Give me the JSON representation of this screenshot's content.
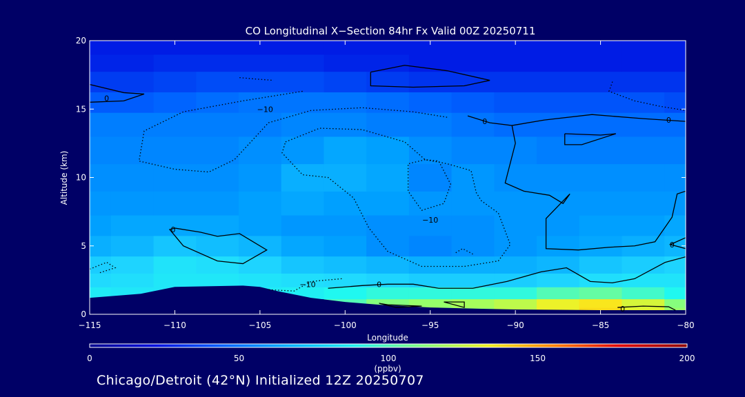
{
  "chart_data": {
    "type": "heatmap",
    "title": "CO Longitudinal X−Section 84hr  Fx Valid 00Z 20250711",
    "xlabel": "Longitude",
    "ylabel": "Altitude (km)",
    "xlim": [
      -115,
      -80
    ],
    "ylim": [
      0,
      20
    ],
    "x_ticks": [
      -115,
      -110,
      -105,
      -100,
      -95,
      -90,
      -85,
      -80
    ],
    "x_tick_labels": [
      "−115",
      "−110",
      "−105",
      "−100",
      "−95",
      "−90",
      "−85",
      "−80"
    ],
    "y_ticks": [
      0,
      5,
      10,
      15,
      20
    ],
    "y_tick_labels": [
      "0",
      "5",
      "10",
      "15",
      "20"
    ],
    "colorbar": {
      "min": 0,
      "max": 200,
      "ticks": [
        0,
        50,
        100,
        150,
        200
      ],
      "tick_labels": [
        "0",
        "50",
        "100",
        "150",
        "200"
      ],
      "units": "(ppbv)",
      "colors": [
        "#000090",
        "#0010e0",
        "#0060ff",
        "#00b0ff",
        "#20f0f0",
        "#80ff80",
        "#f0f020",
        "#ff8000",
        "#e00000",
        "#900000"
      ]
    },
    "color_scale": [
      {
        "v": 0,
        "c": "#000090"
      },
      {
        "v": 25,
        "c": "#0010e0"
      },
      {
        "v": 45,
        "c": "#0060ff"
      },
      {
        "v": 60,
        "c": "#00a0ff"
      },
      {
        "v": 75,
        "c": "#20d8ff"
      },
      {
        "v": 90,
        "c": "#20f8f0"
      },
      {
        "v": 105,
        "c": "#a0ff60"
      },
      {
        "v": 120,
        "c": "#f8f020"
      },
      {
        "v": 140,
        "c": "#ff9000"
      },
      {
        "v": 165,
        "c": "#ff2000"
      },
      {
        "v": 200,
        "c": "#900000"
      }
    ],
    "field": {
      "longitudes": [
        -115,
        -112.5,
        -110,
        -107.5,
        -105,
        -102.5,
        -100,
        -97.5,
        -95,
        -92.5,
        -90,
        -87.5,
        -85,
        -82.5,
        -80
      ],
      "altitudes": [
        0.25,
        0.75,
        1.5,
        2.5,
        3.5,
        5,
        6.5,
        8,
        10,
        12,
        14,
        15.5,
        17,
        18.5,
        19.5
      ],
      "values_ppbv": [
        [
          0,
          0,
          0,
          0,
          0,
          0,
          0,
          102,
          100,
          104,
          110,
          118,
          124,
          116,
          104
        ],
        [
          0,
          0,
          0,
          0,
          0,
          0,
          96,
          102,
          104,
          106,
          110,
          118,
          122,
          114,
          102
        ],
        [
          84,
          82,
          82,
          84,
          84,
          86,
          90,
          92,
          92,
          92,
          92,
          96,
          98,
          94,
          90
        ],
        [
          76,
          78,
          82,
          82,
          80,
          78,
          76,
          74,
          72,
          72,
          72,
          74,
          78,
          80,
          80
        ],
        [
          72,
          74,
          80,
          78,
          74,
          70,
          68,
          66,
          64,
          64,
          64,
          66,
          70,
          72,
          74
        ],
        [
          64,
          66,
          70,
          68,
          66,
          62,
          60,
          56,
          54,
          56,
          58,
          60,
          62,
          64,
          66
        ],
        [
          60,
          62,
          62,
          62,
          60,
          58,
          58,
          56,
          56,
          56,
          58,
          58,
          60,
          60,
          62
        ],
        [
          58,
          58,
          58,
          58,
          60,
          62,
          60,
          60,
          58,
          58,
          58,
          58,
          58,
          58,
          58
        ],
        [
          56,
          56,
          56,
          56,
          58,
          64,
          64,
          62,
          54,
          58,
          56,
          56,
          56,
          56,
          56
        ],
        [
          54,
          54,
          54,
          54,
          56,
          58,
          62,
          60,
          56,
          54,
          54,
          52,
          52,
          52,
          52
        ],
        [
          52,
          52,
          52,
          52,
          52,
          54,
          54,
          52,
          52,
          50,
          48,
          48,
          48,
          48,
          48
        ],
        [
          44,
          44,
          46,
          48,
          50,
          50,
          50,
          48,
          46,
          44,
          42,
          42,
          42,
          42,
          40
        ],
        [
          36,
          36,
          38,
          40,
          40,
          40,
          38,
          36,
          34,
          34,
          34,
          34,
          34,
          34,
          34
        ],
        [
          30,
          30,
          32,
          32,
          32,
          32,
          30,
          30,
          28,
          28,
          28,
          28,
          28,
          28,
          28
        ],
        [
          28,
          28,
          28,
          28,
          28,
          28,
          28,
          28,
          28,
          28,
          28,
          28,
          28,
          28,
          28
        ]
      ]
    },
    "terrain_km": [
      [
        -115,
        1.2
      ],
      [
        -112,
        1.5
      ],
      [
        -110,
        2.0
      ],
      [
        -106,
        2.1
      ],
      [
        -105,
        2.0
      ],
      [
        -104,
        1.7
      ],
      [
        -102,
        1.2
      ],
      [
        -100,
        0.9
      ],
      [
        -98,
        0.7
      ],
      [
        -95,
        0.5
      ],
      [
        -92,
        0.4
      ],
      [
        -90,
        0.35
      ],
      [
        -85,
        0.3
      ],
      [
        -80,
        0.3
      ]
    ],
    "contours": [
      {
        "label": "0",
        "style": "solid",
        "label_at": [
          -114,
          15.8
        ],
        "points": [
          [
            -115,
            16.8
          ],
          [
            -113,
            16.2
          ],
          [
            -111.8,
            16.1
          ],
          [
            -113,
            15.6
          ],
          [
            -115,
            15.5
          ]
        ]
      },
      {
        "label": "0",
        "style": "solid",
        "label_at": [
          -110.1,
          6.2
        ],
        "points": [
          [
            -110,
            6.3
          ],
          [
            -108.5,
            6.0
          ],
          [
            -107.5,
            5.7
          ],
          [
            -106.2,
            5.9
          ],
          [
            -104.6,
            4.7
          ],
          [
            -106,
            3.7
          ],
          [
            -107.5,
            3.9
          ],
          [
            -109.5,
            5.0
          ],
          [
            -110.3,
            6.2
          ],
          [
            -110,
            6.3
          ]
        ]
      },
      {
        "label": "",
        "style": "solid",
        "points": [
          [
            -98.5,
            17.7
          ],
          [
            -96.5,
            18.2
          ],
          [
            -94,
            17.8
          ],
          [
            -91.5,
            17.1
          ],
          [
            -93,
            16.7
          ],
          [
            -96,
            16.6
          ],
          [
            -98.5,
            16.7
          ],
          [
            -98.5,
            17.7
          ]
        ]
      },
      {
        "label": "0",
        "style": "solid",
        "label_at": [
          -91.8,
          14.1
        ],
        "points": [
          [
            -92.8,
            14.5
          ],
          [
            -91.5,
            14.0
          ],
          [
            -90.2,
            13.8
          ],
          [
            -90,
            12.5
          ],
          [
            -90.6,
            9.6
          ],
          [
            -89.5,
            9.0
          ],
          [
            -88,
            8.7
          ],
          [
            -87.2,
            8.1
          ],
          [
            -86.8,
            8.8
          ],
          [
            -88.2,
            7.0
          ],
          [
            -88.2,
            4.8
          ],
          [
            -86.3,
            4.7
          ],
          [
            -84.5,
            4.9
          ],
          [
            -83,
            5.0
          ],
          [
            -81.8,
            5.3
          ],
          [
            -80.8,
            7.1
          ],
          [
            -80.5,
            8.8
          ],
          [
            -80,
            9.0
          ]
        ]
      },
      {
        "label": "0",
        "style": "solid",
        "label_at": [
          -81,
          14.2
        ],
        "points": [
          [
            -80,
            14.1
          ],
          [
            -82.5,
            14.3
          ],
          [
            -85.5,
            14.6
          ],
          [
            -88.3,
            14.2
          ],
          [
            -90.2,
            13.8
          ]
        ]
      },
      {
        "label": "",
        "style": "solid",
        "points": [
          [
            -87.1,
            13.2
          ],
          [
            -85,
            13.1
          ],
          [
            -84.1,
            13.2
          ],
          [
            -86.1,
            12.4
          ],
          [
            -87.1,
            12.4
          ],
          [
            -87.1,
            13.2
          ]
        ]
      },
      {
        "label": "0",
        "style": "solid",
        "label_at": [
          -98,
          2.2
        ],
        "points": [
          [
            -101,
            1.9
          ],
          [
            -99,
            2.1
          ],
          [
            -97.5,
            2.2
          ],
          [
            -96,
            2.2
          ],
          [
            -94.5,
            1.9
          ],
          [
            -92.5,
            1.9
          ],
          [
            -90.5,
            2.4
          ],
          [
            -88.5,
            3.1
          ],
          [
            -87,
            3.4
          ],
          [
            -85.6,
            2.4
          ],
          [
            -84.3,
            2.3
          ],
          [
            -83,
            2.6
          ],
          [
            -81.2,
            3.8
          ],
          [
            -80,
            4.2
          ]
        ]
      },
      {
        "label": "0",
        "style": "solid",
        "label_at": [
          -80.8,
          5.1
        ],
        "points": [
          [
            -80,
            5.6
          ],
          [
            -80.9,
            5.1
          ],
          [
            -80,
            4.8
          ]
        ]
      },
      {
        "label": "",
        "style": "solid",
        "points": [
          [
            -98,
            0.8
          ],
          [
            -97,
            0.5
          ],
          [
            -95.5,
            0.6
          ],
          [
            -97.5,
            0.7
          ],
          [
            -98,
            0.8
          ]
        ]
      },
      {
        "label": "",
        "style": "solid",
        "points": [
          [
            -94.2,
            0.9
          ],
          [
            -93,
            0.5
          ],
          [
            -93,
            0.9
          ],
          [
            -94.2,
            0.9
          ]
        ]
      },
      {
        "label": "0",
        "style": "solid",
        "label_at": [
          -83.7,
          0.4
        ],
        "points": [
          [
            -84,
            0.5
          ],
          [
            -82.5,
            0.6
          ],
          [
            -81,
            0.55
          ],
          [
            -80.6,
            0.3
          ]
        ]
      },
      {
        "label": "−10",
        "style": "dotted",
        "label_at": [
          -104.7,
          15.0
        ],
        "points": [
          [
            -102.5,
            16.3
          ],
          [
            -106,
            15.6
          ],
          [
            -109.5,
            14.8
          ],
          [
            -111.8,
            13.4
          ],
          [
            -112.1,
            11.2
          ],
          [
            -110,
            10.6
          ],
          [
            -108,
            10.4
          ],
          [
            -106.5,
            11.3
          ],
          [
            -104.5,
            14.0
          ],
          [
            -102,
            14.9
          ],
          [
            -99,
            15.1
          ],
          [
            -96,
            14.8
          ],
          [
            -94,
            14.4
          ]
        ]
      },
      {
        "label": "−10",
        "style": "dotted",
        "label_at": [
          -95,
          6.9
        ],
        "points": [
          [
            -103.5,
            12.6
          ],
          [
            -101.5,
            13.6
          ],
          [
            -99,
            13.5
          ],
          [
            -96.5,
            12.6
          ],
          [
            -95.3,
            11.3
          ],
          [
            -94,
            11.0
          ],
          [
            -92.6,
            10.5
          ],
          [
            -92.3,
            8.9
          ],
          [
            -92,
            8.3
          ],
          [
            -91,
            7.4
          ],
          [
            -90.3,
            5.1
          ],
          [
            -91,
            3.9
          ],
          [
            -93,
            3.5
          ],
          [
            -95.5,
            3.5
          ],
          [
            -97.5,
            4.6
          ],
          [
            -98.6,
            6.3
          ],
          [
            -99.5,
            8.5
          ],
          [
            -101,
            10.0
          ],
          [
            -102.5,
            10.2
          ],
          [
            -103.7,
            11.8
          ],
          [
            -103.5,
            12.6
          ]
        ]
      },
      {
        "label": "",
        "style": "dotted",
        "points": [
          [
            -95.3,
            11.3
          ],
          [
            -96.3,
            11.0
          ],
          [
            -96.3,
            9.0
          ],
          [
            -95.5,
            7.6
          ],
          [
            -94.2,
            8.1
          ],
          [
            -93.8,
            9.5
          ],
          [
            -94.5,
            11.2
          ],
          [
            -95.3,
            11.3
          ]
        ]
      },
      {
        "label": "−10",
        "style": "dotted",
        "label_at": [
          -102.2,
          2.2
        ],
        "points": [
          [
            -100.2,
            2.6
          ],
          [
            -102,
            2.4
          ],
          [
            -103,
            1.7
          ],
          [
            -104.5,
            1.8
          ]
        ]
      },
      {
        "label": "",
        "style": "dotted",
        "points": [
          [
            -115,
            3.3
          ],
          [
            -114,
            3.8
          ],
          [
            -113.5,
            3.4
          ],
          [
            -114.5,
            3.0
          ]
        ]
      },
      {
        "label": "",
        "style": "dotted",
        "points": [
          [
            -106.2,
            17.3
          ],
          [
            -105.3,
            17.2
          ],
          [
            -104.2,
            17.1
          ]
        ]
      },
      {
        "label": "",
        "style": "dotted",
        "points": [
          [
            -84.3,
            17.0
          ],
          [
            -84.5,
            16.3
          ],
          [
            -83,
            15.6
          ],
          [
            -81.5,
            15.2
          ],
          [
            -80,
            14.9
          ]
        ]
      },
      {
        "label": "",
        "style": "dotted",
        "points": [
          [
            -93.5,
            4.5
          ],
          [
            -93.1,
            4.8
          ],
          [
            -92.5,
            4.4
          ]
        ]
      }
    ]
  },
  "footer": "Chicago/Detroit (42°N) Initialized 12Z 20250707"
}
